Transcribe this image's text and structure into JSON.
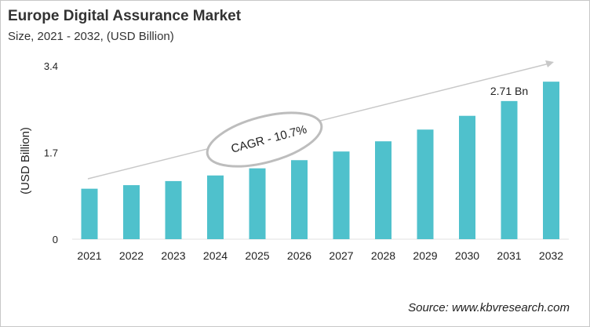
{
  "chart_data": {
    "type": "bar",
    "title": "Europe Digital Assurance Market",
    "subtitle": "Size, 2021 - 2032, (USD Billion)",
    "ylabel": "(USD Billion)",
    "xlabel": "",
    "categories": [
      "2021",
      "2022",
      "2023",
      "2024",
      "2025",
      "2026",
      "2027",
      "2028",
      "2029",
      "2030",
      "2031",
      "2032"
    ],
    "values": [
      0.99,
      1.06,
      1.14,
      1.25,
      1.39,
      1.55,
      1.72,
      1.92,
      2.15,
      2.42,
      2.71,
      3.09
    ],
    "ylim": [
      0,
      3.4
    ],
    "yticks": [
      "0",
      "1.7",
      "3.4"
    ],
    "grid": false,
    "bar_color": "#4fc1cc",
    "annotations": {
      "cagr": "CAGR - 10.7%",
      "data_label": "2.71 Bn",
      "data_label_category": "2031"
    },
    "source": "Source: www.kbvresearch.com"
  }
}
